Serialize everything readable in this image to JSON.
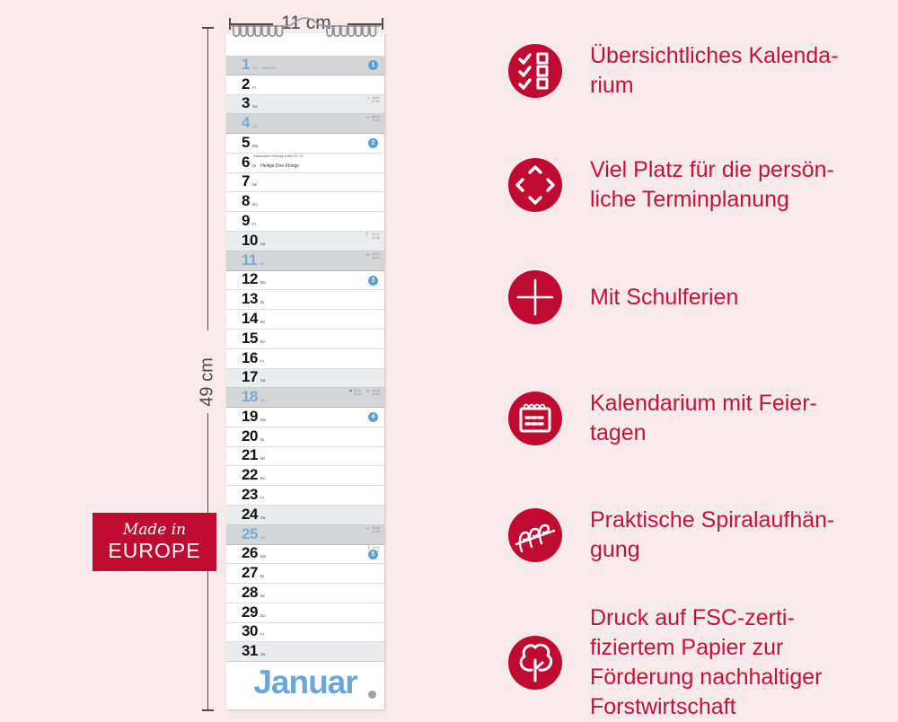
{
  "colors": {
    "background": "#f8eaeb",
    "accent_red": "#c00b31",
    "feature_text_red": "#c2133a",
    "calendar_blue": "#79abd9",
    "month_blue": "#6aa6d9",
    "sunday_row_gray": "#d3d5d7",
    "saturday_row_gray": "#ebeced"
  },
  "dimensions": {
    "width_label": "11 cm",
    "height_label": "49 cm"
  },
  "badge": {
    "line1": "Made in",
    "line2": "EUROPE"
  },
  "calendar": {
    "month_label": "Januar",
    "rows": [
      {
        "day": "1",
        "wd": "Do",
        "type": "sun",
        "note": "Neujahr",
        "week": "1"
      },
      {
        "day": "2",
        "wd": "Fr",
        "type": "wd"
      },
      {
        "day": "3",
        "wd": "Sa",
        "type": "sat",
        "markers": [
          {
            "glyph": "○",
            "lines": [
              "15:54",
              "07:31"
            ]
          }
        ]
      },
      {
        "day": "4",
        "wd": "So",
        "type": "sun",
        "markers": [
          {
            "glyph": "☼",
            "lines": [
              "08:24",
              "16:33"
            ]
          }
        ]
      },
      {
        "day": "5",
        "wd": "Mo",
        "type": "wd",
        "week": "2"
      },
      {
        "day": "6",
        "wd": "Di",
        "type": "wd",
        "tiny": "Gesetzlicher Feiertag in BW, BY, ST",
        "note_black": "Heilige Drei Könige"
      },
      {
        "day": "7",
        "wd": "Mi",
        "type": "wd"
      },
      {
        "day": "8",
        "wd": "Do",
        "type": "wd"
      },
      {
        "day": "9",
        "wd": "Fr",
        "type": "wd"
      },
      {
        "day": "10",
        "wd": "Sa",
        "type": "sat",
        "markers": [
          {
            "glyph": "☾",
            "lines": [
              "23:12",
              "10:38"
            ]
          }
        ]
      },
      {
        "day": "11",
        "wd": "So",
        "type": "sun",
        "markers": [
          {
            "glyph": "☼",
            "lines": [
              "08:21",
              "16:41"
            ]
          }
        ]
      },
      {
        "day": "12",
        "wd": "Mo",
        "type": "wd",
        "week": "3"
      },
      {
        "day": "13",
        "wd": "Di",
        "type": "wd"
      },
      {
        "day": "14",
        "wd": "Mi",
        "type": "wd"
      },
      {
        "day": "15",
        "wd": "Do",
        "type": "wd"
      },
      {
        "day": "16",
        "wd": "Fr",
        "type": "wd"
      },
      {
        "day": "17",
        "wd": "Sa",
        "type": "sat"
      },
      {
        "day": "18",
        "wd": "So",
        "type": "sun",
        "markers": [
          {
            "glyph": "●",
            "lines": [
              "15:31",
              "07:52"
            ]
          },
          {
            "glyph": "☼",
            "lines": [
              "08:15",
              "16:52"
            ]
          }
        ]
      },
      {
        "day": "19",
        "wd": "Mo",
        "type": "wd",
        "week": "4"
      },
      {
        "day": "20",
        "wd": "Di",
        "type": "wd"
      },
      {
        "day": "21",
        "wd": "Mi",
        "type": "wd"
      },
      {
        "day": "22",
        "wd": "Do",
        "type": "wd"
      },
      {
        "day": "23",
        "wd": "Fr",
        "type": "wd"
      },
      {
        "day": "24",
        "wd": "Sa",
        "type": "sat"
      },
      {
        "day": "25",
        "wd": "So",
        "type": "sun",
        "markers": [
          {
            "glyph": "☼",
            "lines": [
              "08:06",
              "17:04"
            ]
          }
        ]
      },
      {
        "day": "26",
        "wd": "Mo",
        "type": "wd",
        "week": "5",
        "markers": [
          {
            "glyph": "☽",
            "lines": [
              "10:02",
              "00:41"
            ]
          }
        ]
      },
      {
        "day": "27",
        "wd": "Di",
        "type": "wd"
      },
      {
        "day": "28",
        "wd": "Mi",
        "type": "wd"
      },
      {
        "day": "29",
        "wd": "Do",
        "type": "wd"
      },
      {
        "day": "30",
        "wd": "Fr",
        "type": "wd"
      },
      {
        "day": "31",
        "wd": "Sa",
        "type": "sat"
      }
    ]
  },
  "features": [
    {
      "icon": "checklist-icon",
      "text": "Übersichtliches Kalenda-\nrium"
    },
    {
      "icon": "expand-arrows-icon",
      "text": "Viel Platz für die persön-\nliche Terminplanung"
    },
    {
      "icon": "plus-icon",
      "text": "Mit Schulferien"
    },
    {
      "icon": "calendar-icon",
      "text": "Kalendarium mit Feier-\ntagen"
    },
    {
      "icon": "spiral-icon",
      "text": "Praktische Spiralaufhän-\ngung"
    },
    {
      "icon": "tree-icon",
      "text": "Druck auf FSC-zerti-\nfiziertem Papier zur\nFörderung nachhaltiger\nForstwirtschaft"
    }
  ]
}
